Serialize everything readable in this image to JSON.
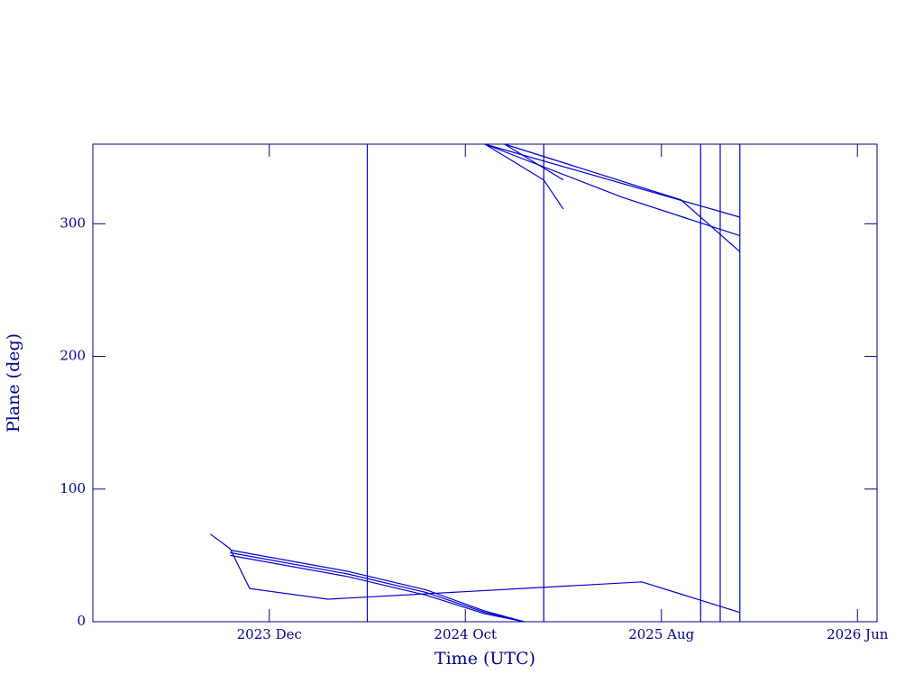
{
  "chart_data": {
    "type": "line",
    "x_label": "Time (UTC)",
    "y_label": "Plane (deg)",
    "color": "#0000d0",
    "axis_color": "#00008b",
    "xlim": [
      "2023-03",
      "2026-07"
    ],
    "xticks": [
      {
        "value": "2023-12",
        "label": "2023 Dec"
      },
      {
        "value": "2024-10",
        "label": "2024 Oct"
      },
      {
        "value": "2025-08",
        "label": "2025 Aug"
      },
      {
        "value": "2026-06",
        "label": "2026 Jun"
      }
    ],
    "ylim": [
      0,
      360
    ],
    "yticks": [
      0,
      100,
      200,
      300
    ],
    "series": [
      {
        "x": [
          "2023-09",
          "2023-10",
          "2023-11",
          "2024-03",
          "2025-07",
          "2025-12"
        ],
        "values": [
          66,
          55,
          25,
          17,
          30,
          7
        ]
      },
      {
        "x": [
          "2023-10",
          "2024-04",
          "2024-08",
          "2024-11",
          "2025-01"
        ],
        "values": [
          54,
          38,
          24,
          8,
          0
        ]
      },
      {
        "x": [
          "2023-10",
          "2024-04",
          "2024-08",
          "2024-11",
          "2025-01"
        ],
        "values": [
          52,
          36,
          22,
          7,
          0
        ]
      },
      {
        "x": [
          "2023-10",
          "2024-04",
          "2024-08",
          "2024-11",
          "2025-01"
        ],
        "values": [
          50,
          34,
          20,
          6,
          0
        ]
      },
      {
        "x": [
          "2024-11",
          "2025-12"
        ],
        "values": [
          360,
          305
        ]
      },
      {
        "x": [
          "2024-11",
          "2025-06",
          "2025-12"
        ],
        "values": [
          360,
          320,
          291
        ]
      },
      {
        "x": [
          "2024-11",
          "2025-02",
          "2025-03"
        ],
        "values": [
          360,
          333,
          311
        ]
      },
      {
        "x": [
          "2024-12",
          "2025-03"
        ],
        "values": [
          360,
          333
        ]
      },
      {
        "x": [
          "2024-12",
          "2025-09",
          "2025-12"
        ],
        "values": [
          360,
          318,
          279
        ]
      },
      {
        "x": [
          "2024-05",
          "2024-05"
        ],
        "values": [
          0,
          360
        ]
      },
      {
        "x": [
          "2025-02",
          "2025-02"
        ],
        "values": [
          0,
          360
        ]
      },
      {
        "x": [
          "2025-10",
          "2025-10"
        ],
        "values": [
          0,
          360
        ]
      },
      {
        "x": [
          "2025-11",
          "2025-11"
        ],
        "values": [
          0,
          360
        ]
      },
      {
        "x": [
          "2025-12",
          "2025-12"
        ],
        "values": [
          0,
          360
        ]
      }
    ]
  }
}
